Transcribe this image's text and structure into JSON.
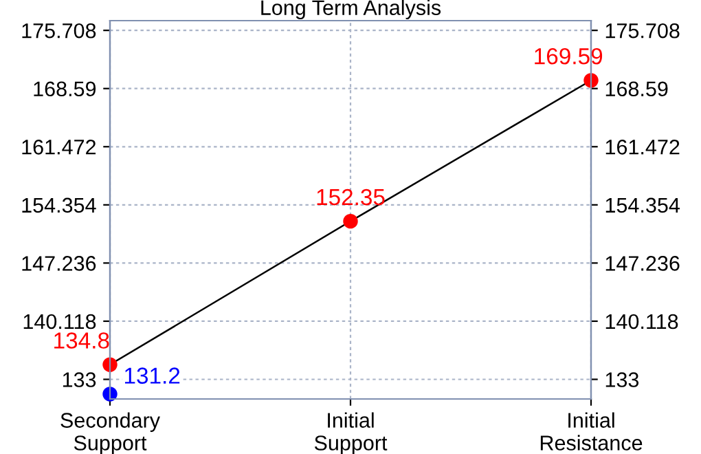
{
  "chart_data": {
    "type": "line",
    "title": "Long Term Analysis",
    "categories": [
      "Secondary\nSupport",
      "Initial\nSupport",
      "Initial\nResistance"
    ],
    "ylim": [
      130.6,
      176.9
    ],
    "yticks": [
      133,
      140.118,
      147.236,
      154.354,
      161.472,
      168.59,
      175.708
    ],
    "y2lim": [
      130.6,
      176.9
    ],
    "y2ticks": [
      133,
      140.118,
      147.236,
      154.354,
      161.472,
      168.59,
      175.708
    ],
    "grid": true,
    "series": [
      {
        "color": "#000000",
        "values": [
          134.8,
          152.35,
          169.59
        ]
      },
      {
        "type": "scatter",
        "color": "#ff0000",
        "values": [
          134.8,
          152.35,
          169.59
        ],
        "marker": "circle",
        "value_labels": [
          "134.8",
          "152.35",
          "169.59"
        ]
      },
      {
        "type": "scatter",
        "color": "#0000ff",
        "values": [
          131.2,
          null,
          null
        ],
        "marker": "circle",
        "value_labels": [
          "131.2",
          null,
          null
        ]
      }
    ]
  }
}
